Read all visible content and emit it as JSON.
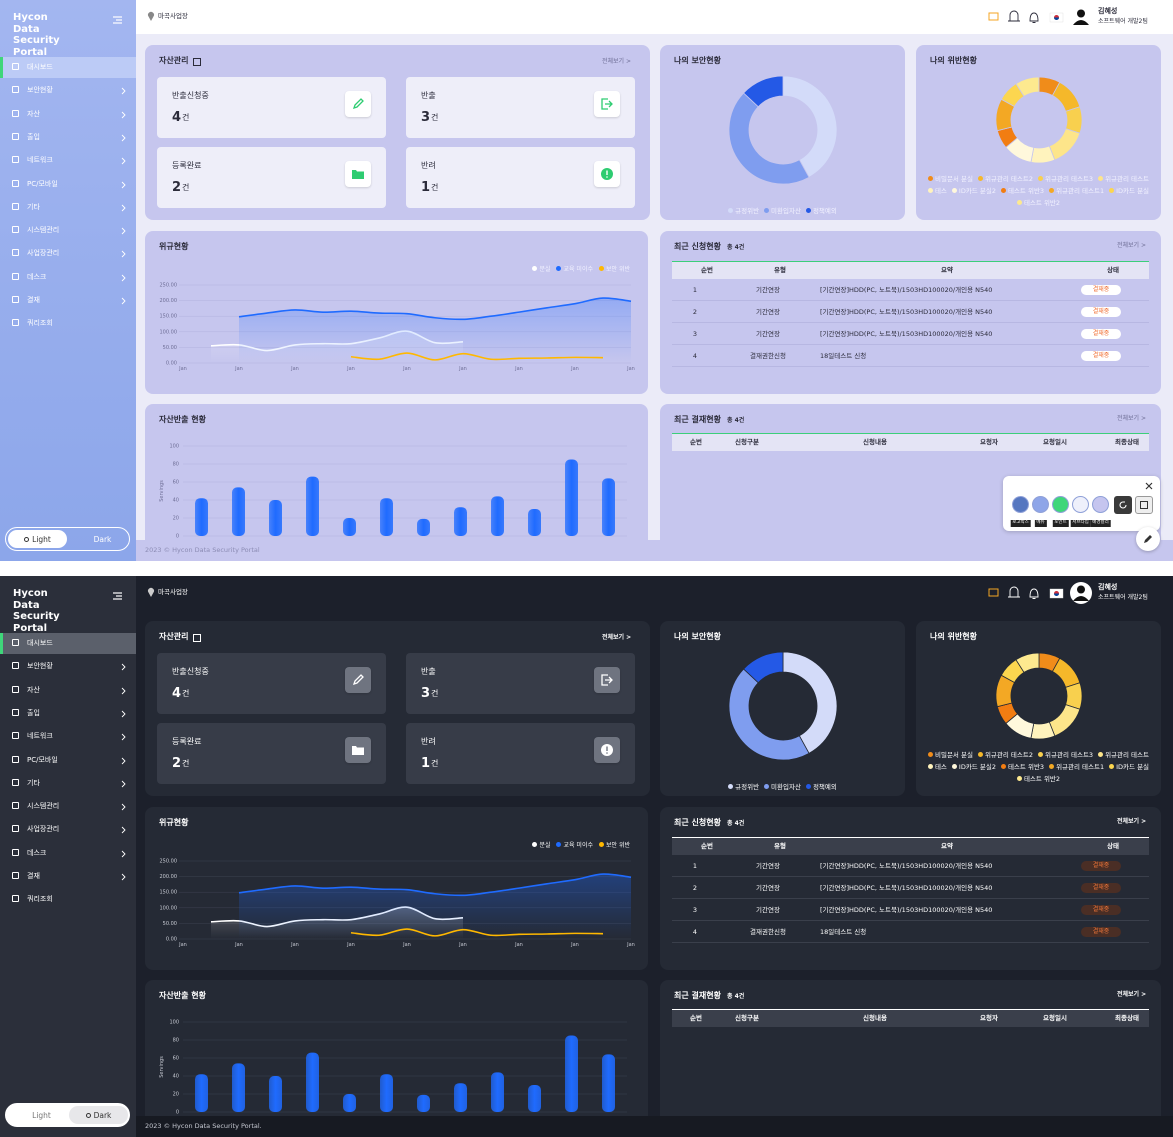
{
  "sidebar": {
    "brand": "Hycon Data Security Portal",
    "menu": [
      "대시보드",
      "보안현황",
      "자산",
      "출입",
      "네트워크",
      "PC/모바일",
      "기타",
      "시스템관리",
      "사업장관리",
      "데스크",
      "결재",
      "쿼리조회"
    ],
    "toggle": [
      "Light",
      "Dark"
    ]
  },
  "header": {
    "location": "마곡사업장",
    "user": "김혜성",
    "team": "소프트웨어 개발2팀"
  },
  "asset": {
    "title": "자산관리",
    "more": "전체보기 >",
    "cards": [
      {
        "label": "반출신청중",
        "count": 4,
        "unit": "건"
      },
      {
        "label": "반출",
        "count": 3,
        "unit": "건"
      },
      {
        "label": "등록완료",
        "count": 2,
        "unit": "건"
      },
      {
        "label": "반려",
        "count": 1,
        "unit": "건"
      }
    ]
  },
  "security": {
    "title": "나의 보안현황",
    "chart_data": {
      "type": "pie",
      "categories": [
        "규정위반",
        "미환입자산",
        "정책예외"
      ],
      "values": [
        42,
        45,
        13
      ],
      "colors": [
        "#d3dbf9",
        "#7f9def",
        "#2459e6"
      ]
    }
  },
  "violation_status": {
    "title": "나의 위반현황",
    "chart_data": {
      "type": "pie",
      "categories": [
        "비밀문서 분실",
        "위규관리 테스트2",
        "위규관리 테스트3",
        "위규관리 테스트",
        "테스",
        "ID카드 분실2",
        "테스트 위반3",
        "위규관리 테스트1",
        "ID카드 분실",
        "테스트 위반2"
      ],
      "values": [
        8,
        12,
        10,
        14,
        9,
        11,
        7,
        12,
        8,
        9
      ],
      "colors": [
        "#f08c1a",
        "#f5b82a",
        "#f8d04e",
        "#fde58a",
        "#fff3bd",
        "#fff8dc",
        "#f27d12",
        "#f3a824",
        "#fcd64f",
        "#fde98f"
      ]
    }
  },
  "violations": {
    "title": "위규현황",
    "chart_data": {
      "type": "line",
      "categories": [
        "Jan",
        null,
        "Jan",
        null,
        "Jan",
        null,
        "Jan",
        null,
        "Jan",
        null,
        "Jan",
        null,
        "Jan",
        null,
        "Jan",
        null,
        "Jan"
      ],
      "series": [
        {
          "name": "분실",
          "color": "#ffffff",
          "values": [
            null,
            55,
            58,
            40,
            58,
            62,
            62,
            80,
            102,
            65,
            68,
            null,
            null,
            null,
            null,
            null,
            null
          ]
        },
        {
          "name": "교육 미이수",
          "color": "#1f6bff",
          "values": [
            null,
            null,
            148,
            160,
            170,
            163,
            166,
            160,
            158,
            145,
            140,
            150,
            163,
            177,
            190,
            208,
            198
          ]
        },
        {
          "name": "보안 위반",
          "color": "#ffb800",
          "values": [
            null,
            null,
            null,
            null,
            null,
            null,
            20,
            12,
            32,
            10,
            30,
            12,
            15,
            16,
            18,
            17,
            null
          ]
        }
      ],
      "ylim": [
        0,
        250
      ],
      "yticks": [
        {
          "value": 0,
          "label": "0.00"
        },
        {
          "value": 50,
          "label": "50.00"
        },
        {
          "value": 100,
          "label": "100.00"
        },
        {
          "value": 150,
          "label": "150.00"
        },
        {
          "value": 200,
          "label": "200.00"
        },
        {
          "value": 250,
          "label": "250.00"
        }
      ],
      "grid": true
    }
  },
  "requests": {
    "title": "최근 신청현황",
    "total": "총 4건",
    "more": "전체보기 >",
    "columns": [
      "순번",
      "유형",
      "요약",
      "상태"
    ],
    "rows": [
      [
        1,
        "기간연장",
        "[기간연장]HDD(PC, 노트북)/1503HD100020/개인용 N540",
        "결재중"
      ],
      [
        2,
        "기간연장",
        "[기간연장]HDD(PC, 노트북)/1503HD100020/개인용 N540",
        "결재중"
      ],
      [
        3,
        "기간연장",
        "[기간연장]HDD(PC, 노트북)/1503HD100020/개인용 N540",
        "결재중"
      ],
      [
        4,
        "결재권한신청",
        "18일테스트 신청",
        "결재중"
      ]
    ]
  },
  "asset_out": {
    "title": "자산반출 현황",
    "chart_data": {
      "type": "bar",
      "values": [
        42,
        54,
        40,
        66,
        20,
        42,
        19,
        32,
        44,
        30,
        85,
        64
      ],
      "color": "#1f6bff",
      "ylabel": "Servings",
      "ylim": [
        0,
        100
      ],
      "yticks": [
        0,
        20,
        40,
        60,
        80,
        100
      ],
      "grid": true
    }
  },
  "approvals": {
    "title": "최근 결재현황",
    "total": "총 4건",
    "more": "전체보기 >",
    "columns": [
      "순번",
      "신청구분",
      "신청내용",
      "요청자",
      "요청일시",
      "최종상태"
    ]
  },
  "screens": [
    {
      "mode": "light",
      "footer": "2023 © Hycon Data Security Portal",
      "color_picker": {
        "swatches": [
          {
            "label": "로고박스",
            "color": "#5677c0"
          },
          {
            "label": "메뉴",
            "color": "#8ea5e8"
          },
          {
            "label": "포인트",
            "color": "#3fd67a"
          },
          {
            "label": "서브타입",
            "color": "#eef0fb"
          },
          {
            "label": "배경컬러",
            "color": "#c5c5ef"
          }
        ]
      }
    },
    {
      "mode": "dark",
      "footer": "2023 © Hycon Data Security Portal."
    }
  ]
}
